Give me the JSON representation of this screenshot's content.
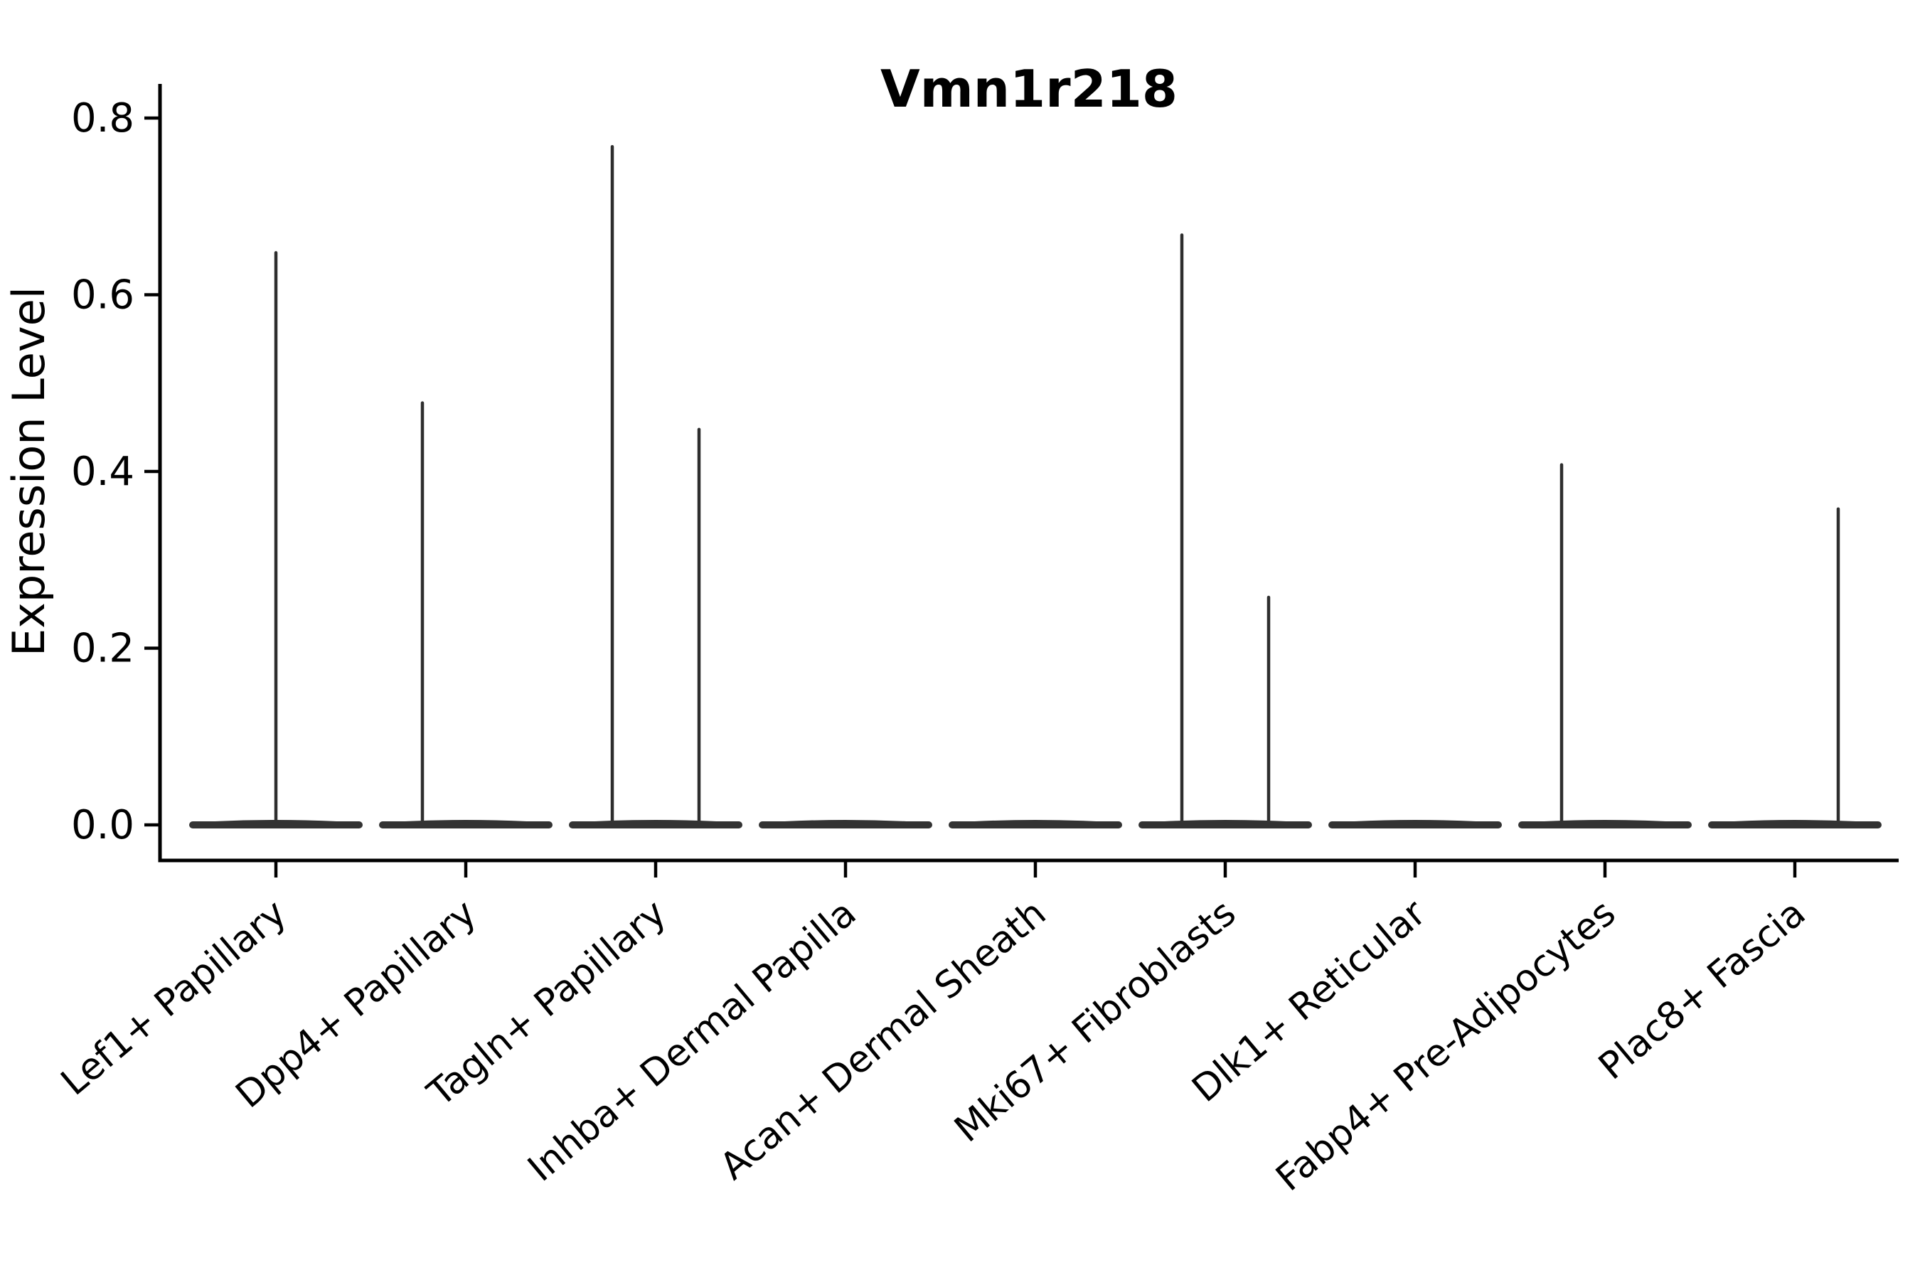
{
  "chart_data": {
    "type": "violin",
    "title": "Vmn1r218",
    "xlabel": "",
    "ylabel": "Expression Level",
    "ylim": [
      0.0,
      0.84
    ],
    "yticks": [
      0.0,
      0.2,
      0.4,
      0.6,
      0.8
    ],
    "grid": false,
    "legend": "none",
    "xtick_rotation": 40,
    "categories": [
      "Lef1+ Papillary",
      "Dpp4+ Papillary",
      "Tagln+ Papillary",
      "Inhba+ Dermal Papilla",
      "Acan+ Dermal Sheath",
      "Mki67+ Fibroblasts",
      "Dlk1+ Reticular",
      "Fabp4+ Pre-Adipocytes",
      "Plac8+ Fascia"
    ],
    "violins": [
      {
        "category": "Lef1+ Papillary",
        "body_at_zero": true,
        "spikes": [
          {
            "position": "center",
            "max": 0.65
          }
        ]
      },
      {
        "category": "Dpp4+ Papillary",
        "body_at_zero": true,
        "spikes": [
          {
            "position": "left",
            "max": 0.48
          }
        ]
      },
      {
        "category": "Tagln+ Papillary",
        "body_at_zero": true,
        "spikes": [
          {
            "position": "left",
            "max": 0.77
          },
          {
            "position": "right",
            "max": 0.45
          }
        ]
      },
      {
        "category": "Inhba+ Dermal Papilla",
        "body_at_zero": true,
        "spikes": []
      },
      {
        "category": "Acan+ Dermal Sheath",
        "body_at_zero": true,
        "spikes": []
      },
      {
        "category": "Mki67+ Fibroblasts",
        "body_at_zero": true,
        "spikes": [
          {
            "position": "left",
            "max": 0.67
          },
          {
            "position": "right",
            "max": 0.26
          }
        ]
      },
      {
        "category": "Dlk1+ Reticular",
        "body_at_zero": true,
        "spikes": []
      },
      {
        "category": "Fabp4+ Pre-Adipocytes",
        "body_at_zero": true,
        "spikes": [
          {
            "position": "left",
            "max": 0.41
          }
        ]
      },
      {
        "category": "Plac8+ Fascia",
        "body_at_zero": true,
        "spikes": [
          {
            "position": "right",
            "max": 0.36
          }
        ]
      }
    ],
    "colors": {
      "background": "#ffffff",
      "axis": "#000000",
      "text": "#000000",
      "violin_body": "#333333",
      "violin_spike": "#2e2e2e"
    }
  }
}
